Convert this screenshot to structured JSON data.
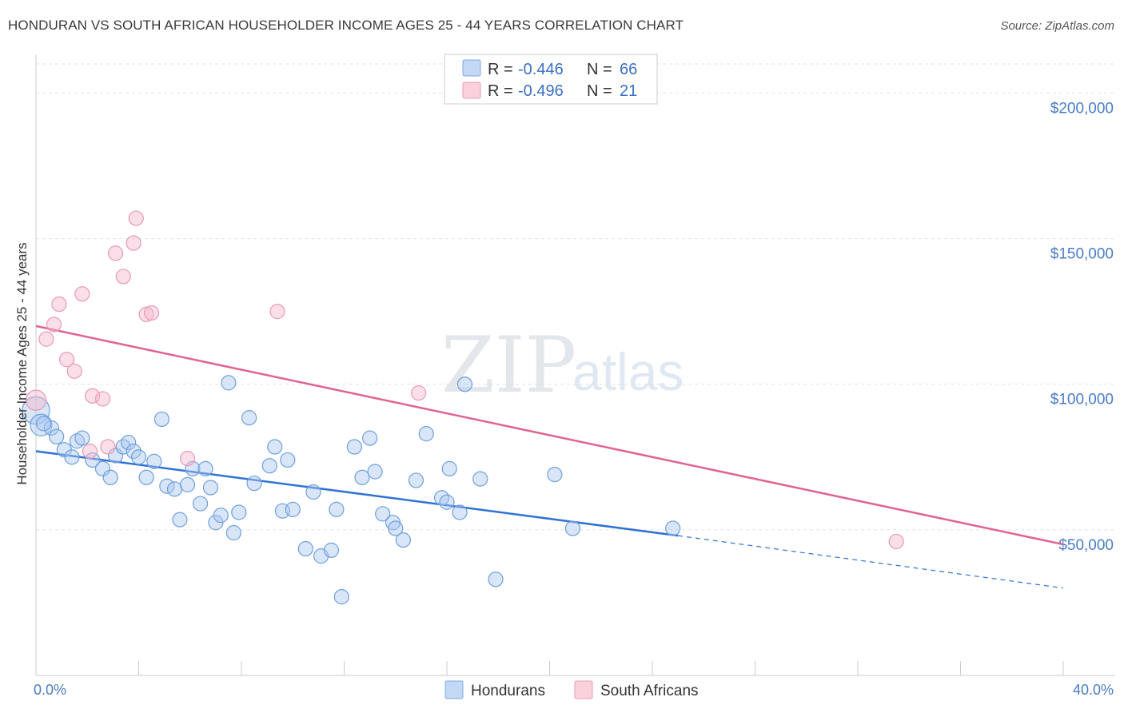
{
  "title": "HONDURAN VS SOUTH AFRICAN HOUSEHOLDER INCOME AGES 25 - 44 YEARS CORRELATION CHART",
  "source": "Source: ZipAtlas.com",
  "watermark": {
    "zip": "ZIP",
    "atlas": "atlas"
  },
  "legend": {
    "rows": [
      {
        "r_label": "R =",
        "r_value": "-0.446",
        "n_label": "N =",
        "n_value": "66",
        "color": "#a8c8f0"
      },
      {
        "r_label": "R =",
        "r_value": "-0.496",
        "n_label": "N =",
        "n_value": "21",
        "color": "#f5b8cb"
      }
    ]
  },
  "bottom_legend": [
    "Hondurans",
    "South Africans"
  ],
  "chart_data": {
    "type": "scatter",
    "title": "HONDURAN VS SOUTH AFRICAN HOUSEHOLDER INCOME AGES 25 - 44 YEARS CORRELATION CHART",
    "xlabel": "",
    "ylabel": "Householder Income Ages 25 - 44 years",
    "xlim": [
      0,
      40
    ],
    "ylim": [
      0,
      210000
    ],
    "x_tick_labels": [
      "0.0%",
      "40.0%"
    ],
    "y_ticks": [
      50000,
      100000,
      150000,
      200000
    ],
    "y_tick_labels": [
      "$50,000",
      "$100,000",
      "$150,000",
      "$200,000"
    ],
    "colors": {
      "hondurans": "#4a86d8",
      "south_africans": "#e97da0",
      "blue_line": "#2f72d4",
      "pink_line": "#e0648f"
    },
    "series": [
      {
        "name": "Hondurans",
        "color": "#a8c8f0",
        "trend": {
          "x0": 0,
          "y0": 77000,
          "x1": 25,
          "y1": 48000,
          "dash_to_x": 40,
          "dash_to_y": 30000
        },
        "points": [
          [
            0.0,
            91000,
            1.9
          ],
          [
            0.2,
            86000,
            1.5
          ],
          [
            0.6,
            85000,
            1
          ],
          [
            0.8,
            82000,
            1
          ],
          [
            1.1,
            77500,
            1
          ],
          [
            1.4,
            75000,
            1
          ],
          [
            1.6,
            80500,
            1
          ],
          [
            1.8,
            81500,
            1
          ],
          [
            2.2,
            74000,
            1
          ],
          [
            2.6,
            71000,
            1
          ],
          [
            2.9,
            68000,
            1
          ],
          [
            3.1,
            75500,
            1
          ],
          [
            3.4,
            78500,
            1
          ],
          [
            3.6,
            80000,
            1
          ],
          [
            3.8,
            77000,
            1
          ],
          [
            4.0,
            75000,
            1
          ],
          [
            4.3,
            68000,
            1
          ],
          [
            4.6,
            73500,
            1
          ],
          [
            4.9,
            88000,
            1
          ],
          [
            5.1,
            65000,
            1
          ],
          [
            5.4,
            64000,
            1
          ],
          [
            5.6,
            53500,
            1
          ],
          [
            5.9,
            65500,
            1
          ],
          [
            6.1,
            71000,
            1
          ],
          [
            6.4,
            59000,
            1
          ],
          [
            6.6,
            71000,
            1
          ],
          [
            6.8,
            64500,
            1
          ],
          [
            7.0,
            52500,
            1
          ],
          [
            7.2,
            55000,
            1
          ],
          [
            7.5,
            100500,
            1
          ],
          [
            7.7,
            49000,
            1
          ],
          [
            7.9,
            56000,
            1
          ],
          [
            8.3,
            88500,
            1
          ],
          [
            8.5,
            66000,
            1
          ],
          [
            9.1,
            72000,
            1
          ],
          [
            9.3,
            78500,
            1
          ],
          [
            9.6,
            56500,
            1
          ],
          [
            9.8,
            74000,
            1
          ],
          [
            10.0,
            57000,
            1
          ],
          [
            10.5,
            43500,
            1
          ],
          [
            10.8,
            63000,
            1
          ],
          [
            11.1,
            41000,
            1
          ],
          [
            11.5,
            43000,
            1
          ],
          [
            11.7,
            57000,
            1
          ],
          [
            11.9,
            27000,
            1
          ],
          [
            12.4,
            78500,
            1
          ],
          [
            12.7,
            68000,
            1
          ],
          [
            13.0,
            81500,
            1
          ],
          [
            13.2,
            70000,
            1
          ],
          [
            13.5,
            55500,
            1
          ],
          [
            13.9,
            52500,
            1
          ],
          [
            14.0,
            50500,
            1
          ],
          [
            14.3,
            46500,
            1
          ],
          [
            14.8,
            67000,
            1
          ],
          [
            15.2,
            83000,
            1
          ],
          [
            15.8,
            61000,
            1
          ],
          [
            16.0,
            59500,
            1
          ],
          [
            16.1,
            71000,
            1
          ],
          [
            16.5,
            56000,
            1
          ],
          [
            16.7,
            100000,
            1
          ],
          [
            17.3,
            67500,
            1
          ],
          [
            17.9,
            33000,
            1
          ],
          [
            20.2,
            69000,
            1
          ],
          [
            20.9,
            50500,
            1
          ],
          [
            24.8,
            50500,
            1
          ],
          [
            0.3,
            86500,
            1
          ]
        ]
      },
      {
        "name": "South Africans",
        "color": "#f5b8cb",
        "trend": {
          "x0": 0,
          "y0": 120000,
          "x1": 40,
          "y1": 45000
        },
        "points": [
          [
            0.0,
            94500,
            1.4
          ],
          [
            0.4,
            115500,
            1
          ],
          [
            0.7,
            120500,
            1
          ],
          [
            0.9,
            127500,
            1
          ],
          [
            1.2,
            108500,
            1
          ],
          [
            1.5,
            104500,
            1
          ],
          [
            1.8,
            131000,
            1
          ],
          [
            2.1,
            77000,
            1
          ],
          [
            2.2,
            96000,
            1
          ],
          [
            2.6,
            95000,
            1
          ],
          [
            2.8,
            78500,
            1
          ],
          [
            3.1,
            145000,
            1
          ],
          [
            3.4,
            137000,
            1
          ],
          [
            3.8,
            148500,
            1
          ],
          [
            3.9,
            157000,
            1
          ],
          [
            4.3,
            124000,
            1
          ],
          [
            4.5,
            124500,
            1
          ],
          [
            5.9,
            74500,
            1
          ],
          [
            9.4,
            125000,
            1
          ],
          [
            14.9,
            97000,
            1
          ],
          [
            33.5,
            46000,
            1
          ]
        ]
      }
    ]
  }
}
